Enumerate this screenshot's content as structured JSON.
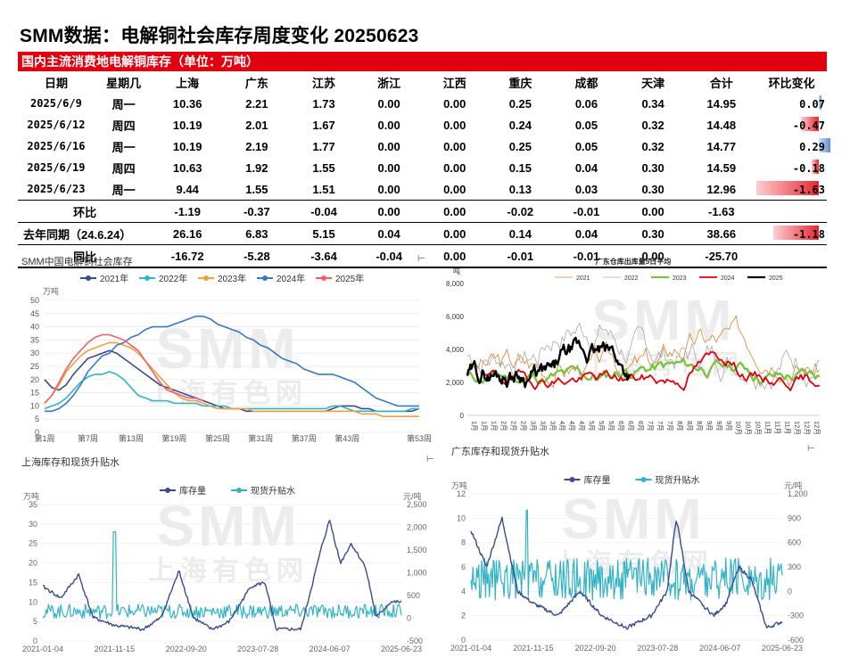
{
  "title": "SMM数据：电解铜社会库存周度变化 20250623",
  "banner": "国内主流消费地电解铜库存（单位：万吨）",
  "table": {
    "headers": [
      "日期",
      "星期几",
      "上海",
      "广东",
      "江苏",
      "浙江",
      "江西",
      "重庆",
      "成都",
      "天津",
      "合计",
      "环比变化"
    ],
    "rows": [
      {
        "date": "2025/6/9",
        "wd": "周一",
        "v": [
          "10.36",
          "2.21",
          "1.73",
          "0.00",
          "0.00",
          "0.25",
          "0.06",
          "0.34",
          "14.95"
        ],
        "chg": "0.07",
        "chgv": 0.07
      },
      {
        "date": "2025/6/12",
        "wd": "周四",
        "v": [
          "10.19",
          "2.01",
          "1.67",
          "0.00",
          "0.00",
          "0.24",
          "0.05",
          "0.32",
          "14.48"
        ],
        "chg": "-0.47",
        "chgv": -0.47
      },
      {
        "date": "2025/6/16",
        "wd": "周一",
        "v": [
          "10.19",
          "2.19",
          "1.77",
          "0.00",
          "0.00",
          "0.25",
          "0.05",
          "0.32",
          "14.77"
        ],
        "chg": "0.29",
        "chgv": 0.29
      },
      {
        "date": "2025/6/19",
        "wd": "周四",
        "v": [
          "10.63",
          "1.92",
          "1.55",
          "0.00",
          "0.00",
          "0.15",
          "0.04",
          "0.30",
          "14.59"
        ],
        "chg": "-0.18",
        "chgv": -0.18
      },
      {
        "date": "2025/6/23",
        "wd": "周一",
        "v": [
          "9.44",
          "1.55",
          "1.51",
          "0.00",
          "0.00",
          "0.13",
          "0.03",
          "0.30",
          "12.96"
        ],
        "chg": "-1.63",
        "chgv": -1.63
      }
    ],
    "summary": [
      {
        "label": "环比",
        "v": [
          "-1.19",
          "-0.37",
          "-0.04",
          "0.00",
          "0.00",
          "-0.02",
          "-0.01",
          "0.00",
          "-1.63"
        ],
        "chg": "",
        "chgv": null
      },
      {
        "label": "去年同期（24.6.24）",
        "v": [
          "26.16",
          "6.83",
          "5.15",
          "0.04",
          "0.00",
          "0.14",
          "0.04",
          "0.30",
          "38.66"
        ],
        "chg": "-1.18",
        "chgv": -1.18
      },
      {
        "label": "同比",
        "v": [
          "-16.72",
          "-5.28",
          "-3.64",
          "-0.04",
          "0.00",
          "-0.01",
          "-0.01",
          "0.00",
          "-25.70"
        ],
        "chg": "",
        "chgv": null
      }
    ]
  },
  "colors": {
    "red": "#e0000f",
    "pos_bar": "#5b8fd6",
    "neg_bar": "#e8262f"
  },
  "watermark": {
    "top": "SMM",
    "bottom": "上海有色网"
  },
  "chart_data": [
    {
      "type": "line",
      "title": "SMM中国电解铜社会库存",
      "unit": "万吨",
      "ylim": [
        0,
        50
      ],
      "yticks": [
        0,
        5,
        10,
        15,
        20,
        25,
        30,
        35,
        40,
        45,
        50
      ],
      "xticks": [
        "第1周",
        "第7周",
        "第13周",
        "第19周",
        "第25周",
        "第31周",
        "第37周",
        "第43周",
        "第53周"
      ],
      "x_max": 53,
      "series": [
        {
          "name": "2021年",
          "color": "#3c4a8c",
          "values": [
            20,
            17,
            16,
            18,
            22,
            25,
            28,
            29,
            30,
            31,
            30,
            28,
            26,
            24,
            22,
            20,
            18,
            17,
            16,
            15,
            14,
            13,
            12,
            11,
            10,
            9,
            9,
            9,
            8,
            8,
            8,
            8,
            8,
            8,
            8,
            8,
            8,
            8,
            8,
            8,
            9,
            10,
            10,
            10,
            9,
            9,
            8,
            8,
            8,
            8,
            8,
            8,
            9
          ]
        },
        {
          "name": "2022年",
          "color": "#33b3c4",
          "values": [
            9,
            10,
            11,
            13,
            16,
            19,
            21,
            22,
            22,
            23,
            22,
            20,
            17,
            14,
            13,
            12,
            12,
            12,
            11,
            11,
            11,
            11,
            10,
            10,
            10,
            10,
            9,
            9,
            9,
            9,
            9,
            9,
            9,
            9,
            9,
            9,
            9,
            9,
            9,
            9,
            10,
            10,
            9,
            8,
            8,
            8,
            8,
            8,
            8,
            8,
            8,
            9,
            9
          ]
        },
        {
          "name": "2023年",
          "color": "#f0a040",
          "values": [
            11,
            14,
            18,
            23,
            26,
            29,
            31,
            32,
            33,
            34,
            34,
            33,
            32,
            30,
            27,
            24,
            21,
            18,
            15,
            13,
            12,
            12,
            11,
            10,
            9,
            9,
            9,
            9,
            9,
            8,
            8,
            8,
            8,
            8,
            8,
            8,
            8,
            8,
            8,
            8,
            8,
            8,
            8,
            8,
            7,
            7,
            7,
            6,
            6,
            6,
            6,
            6,
            6
          ]
        },
        {
          "name": "2024年",
          "color": "#3a78c0",
          "values": [
            8,
            8,
            9,
            11,
            14,
            18,
            23,
            26,
            29,
            30,
            33,
            34,
            36,
            37,
            39,
            40,
            40,
            40,
            41,
            42,
            43,
            44,
            44,
            43,
            41,
            40,
            39,
            38,
            36,
            35,
            33,
            32,
            30,
            28,
            27,
            26,
            24,
            23,
            22,
            22,
            22,
            21,
            20,
            19,
            17,
            15,
            13,
            12,
            11,
            10,
            10,
            10,
            10
          ]
        },
        {
          "name": "2025年",
          "color": "#f0606a",
          "values": [
            11,
            14,
            19,
            24,
            28,
            31,
            34,
            36,
            37,
            37,
            36,
            35,
            33,
            31,
            27,
            23,
            19,
            16,
            15,
            14,
            13,
            13,
            12
          ]
        }
      ]
    },
    {
      "type": "line",
      "title": "广东仓库出库量5日平均",
      "unit": "吨",
      "ylim": [
        0,
        8000
      ],
      "yticks": [
        "0",
        "2,000",
        "4,000",
        "6,000",
        "8,000"
      ],
      "xticks": [
        "1月",
        "1月",
        "1月",
        "2月",
        "2月",
        "2月",
        "3月",
        "3月",
        "3月",
        "4月",
        "4月",
        "4月",
        "5月",
        "5月",
        "5月",
        "6月",
        "6月",
        "6月",
        "7月",
        "7月",
        "7月",
        "8月",
        "8月",
        "8月",
        "9月",
        "9月",
        "9月",
        "10月",
        "10月",
        "10月",
        "11月",
        "11月",
        "11月",
        "12月",
        "12月",
        "12月"
      ],
      "series": [
        {
          "name": "2021",
          "color": "#d9822b",
          "width": 0.8
        },
        {
          "name": "2022",
          "color": "#a8a8a8",
          "width": 0.8
        },
        {
          "name": "2023",
          "color": "#7cc242",
          "width": 2.4
        },
        {
          "name": "2024",
          "color": "#e0000f",
          "width": 1.8
        },
        {
          "name": "2025",
          "color": "#000000",
          "width": 2.4
        }
      ]
    },
    {
      "type": "line",
      "title": "上海库存和现货升贴水",
      "left_unit": "万吨",
      "right_unit": "元/吨",
      "left_ylim": [
        0,
        35
      ],
      "left_ticks": [
        0,
        5,
        10,
        15,
        20,
        25,
        30,
        35
      ],
      "right_ylim": [
        -500,
        2500
      ],
      "right_ticks": [
        "-500",
        "0",
        "500",
        "1,000",
        "1,500",
        "2,000",
        "2,500"
      ],
      "xticks": [
        "2021-01-04",
        "2021-11-15",
        "2022-09-20",
        "2023-07-28",
        "2024-06-07",
        "2025-06-23"
      ],
      "series": [
        {
          "name": "库存量",
          "color": "#3c4a8c",
          "axis": "left"
        },
        {
          "name": "现货升贴水",
          "color": "#33b3c4",
          "axis": "right"
        }
      ]
    },
    {
      "type": "line",
      "title": "广东库存和现货升贴水",
      "left_unit": "万吨",
      "right_unit": "元/吨",
      "left_ylim": [
        0,
        12
      ],
      "left_ticks": [
        0,
        2,
        4,
        6,
        8,
        10,
        12
      ],
      "right_ylim": [
        -600,
        1200
      ],
      "right_ticks": [
        "-600",
        "-300",
        "0",
        "300",
        "600",
        "900",
        "1,200"
      ],
      "xticks": [
        "2021-01-04",
        "2021-11-15",
        "2022-09-20",
        "2023-07-28",
        "2024-06-07",
        "2025-06-23"
      ],
      "series": [
        {
          "name": "库存量",
          "color": "#3c4a8c",
          "axis": "left"
        },
        {
          "name": "现货升贴水",
          "color": "#33b3c4",
          "axis": "right"
        }
      ]
    }
  ]
}
